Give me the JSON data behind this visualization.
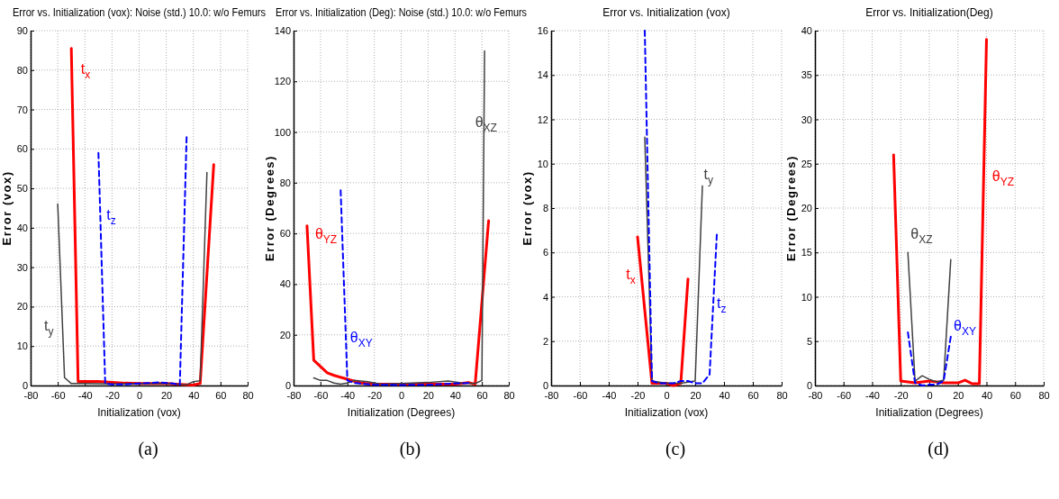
{
  "chart_data": [
    {
      "type": "line",
      "title": "Error vs. Initialization (vox): Noise (std.) 10.0: w/o Femurs",
      "xlabel": "Initialization (vox)",
      "ylabel": "Error (vox)",
      "xlim": [
        -80,
        80
      ],
      "ylim": [
        0,
        90
      ],
      "xticks": [
        -80,
        -60,
        -40,
        -20,
        0,
        20,
        40,
        60,
        80
      ],
      "yticks": [
        0,
        10,
        20,
        30,
        40,
        50,
        60,
        70,
        80,
        90
      ],
      "grid": true,
      "annotations": [
        "(a)"
      ],
      "series": [
        {
          "name": "t$_{x}$",
          "color": "#ff0000",
          "line_style": "solid",
          "x": [
            -50,
            -45,
            -40,
            -30,
            -20,
            -10,
            0,
            10,
            20,
            30,
            40,
            45,
            55
          ],
          "values": [
            85.5,
            1,
            1,
            1,
            0.8,
            0.6,
            0.5,
            0.5,
            0.5,
            0.3,
            0.1,
            0.5,
            56
          ]
        },
        {
          "name": "t$_{y}$",
          "color": "#404040",
          "line_style": "solid",
          "x": [
            -60,
            -55,
            -50,
            -40,
            -20,
            0,
            20,
            30,
            35,
            40,
            45,
            50
          ],
          "values": [
            46,
            2,
            0.5,
            0.5,
            0.4,
            0.5,
            0.5,
            0.3,
            0.2,
            1,
            1.2,
            54
          ]
        },
        {
          "name": "t$_{z}$",
          "color": "#0000ff",
          "line_style": "dashed",
          "x": [
            -30,
            -25,
            -20,
            -10,
            0,
            10,
            15,
            25,
            30,
            35
          ],
          "values": [
            59,
            0.5,
            0.3,
            0.3,
            0.5,
            0.7,
            0.8,
            0.5,
            0.2,
            63
          ]
        }
      ]
    },
    {
      "type": "line",
      "title": "Error vs. Initialization (Deg): Noise (std.) 10.0: w/o Femurs",
      "xlabel": "Initialization (Degrees)",
      "ylabel": "Error (Degrees)",
      "xlim": [
        -80,
        80
      ],
      "ylim": [
        0,
        140
      ],
      "xticks": [
        -80,
        -60,
        -40,
        -20,
        0,
        20,
        40,
        60,
        80
      ],
      "yticks": [
        0,
        20,
        40,
        60,
        80,
        100,
        120,
        140
      ],
      "grid": true,
      "annotations": [
        "(b)"
      ],
      "series": [
        {
          "name": "θ$_{YZ}$",
          "color": "#ff0000",
          "line_style": "solid",
          "x": [
            -70,
            -65,
            -60,
            -55,
            -50,
            -40,
            -30,
            -20,
            0,
            20,
            40,
            50,
            55,
            65
          ],
          "values": [
            63,
            10,
            7.5,
            5,
            4,
            2.5,
            1,
            0.5,
            0.5,
            0.5,
            0.5,
            1.2,
            0.5,
            65
          ]
        },
        {
          "name": "θ$_{XZ}$",
          "color": "#404040",
          "line_style": "solid",
          "x": [
            -65,
            -60,
            -55,
            -50,
            -45,
            -40,
            -35,
            -25,
            -15,
            0,
            20,
            35,
            45,
            55,
            60,
            62
          ],
          "values": [
            3,
            2,
            2,
            1,
            0.5,
            1,
            2,
            1.5,
            0.5,
            0.8,
            1.2,
            1.8,
            1,
            0.8,
            2,
            132
          ]
        },
        {
          "name": "θ$_{XY}$",
          "color": "#0000ff",
          "line_style": "dashed",
          "x": [
            -45,
            -40,
            -35,
            -20,
            0,
            20,
            40,
            50
          ],
          "values": [
            77,
            2,
            1,
            0.3,
            0.2,
            0.3,
            0.8,
            1
          ]
        }
      ]
    },
    {
      "type": "line",
      "title": "Error vs. Initialization (vox)",
      "xlabel": "Initialization (vox)",
      "ylabel": "Error (vox)",
      "xlim": [
        -80,
        80
      ],
      "ylim": [
        0,
        16
      ],
      "xticks": [
        -80,
        -60,
        -40,
        -20,
        0,
        20,
        40,
        60,
        80
      ],
      "yticks": [
        0,
        2,
        4,
        6,
        8,
        10,
        12,
        14,
        16
      ],
      "grid": true,
      "annotations": [
        "(c)"
      ],
      "series": [
        {
          "name": "t$_{x}$",
          "color": "#ff0000",
          "line_style": "solid",
          "x": [
            -20,
            -10,
            0,
            5,
            10,
            15
          ],
          "values": [
            6.7,
            0.1,
            0.1,
            0,
            0.1,
            4.8
          ]
        },
        {
          "name": "t$_{y}$",
          "color": "#404040",
          "line_style": "solid",
          "x": [
            -15,
            -10,
            0,
            10,
            20,
            25
          ],
          "values": [
            11.2,
            0.2,
            0.1,
            0.1,
            0.2,
            9
          ]
        },
        {
          "name": "t$_{z}$",
          "color": "#0000ff",
          "line_style": "dashed",
          "x": [
            -15,
            -10,
            -5,
            0,
            5,
            10,
            15,
            20,
            25,
            30,
            35
          ],
          "values": [
            16,
            0.2,
            0.1,
            0.1,
            0.1,
            0.2,
            0.2,
            0.1,
            0.1,
            0.5,
            6.8
          ]
        }
      ]
    },
    {
      "type": "line",
      "title": "Error vs. Initialization(Deg)",
      "xlabel": "Initialization (Degrees)",
      "ylabel": "Error (Degrees)",
      "xlim": [
        -80,
        80
      ],
      "ylim": [
        0,
        40
      ],
      "xticks": [
        -80,
        -60,
        -40,
        -20,
        0,
        20,
        40,
        60,
        80
      ],
      "yticks": [
        0,
        5,
        10,
        15,
        20,
        25,
        30,
        35,
        40
      ],
      "grid": true,
      "annotations": [
        "(d)"
      ],
      "series": [
        {
          "name": "θ$_{YZ}$",
          "color": "#ff0000",
          "line_style": "solid",
          "x": [
            -25,
            -20,
            -10,
            0,
            10,
            20,
            25,
            30,
            35,
            40
          ],
          "values": [
            26,
            0.5,
            0.3,
            0.5,
            0.3,
            0.3,
            0.6,
            0.2,
            0.2,
            39
          ]
        },
        {
          "name": "θ$_{XZ}$",
          "color": "#404040",
          "line_style": "solid",
          "x": [
            -15,
            -10,
            -5,
            0,
            5,
            10,
            15
          ],
          "values": [
            15,
            0.5,
            1.1,
            0.7,
            0.4,
            0.6,
            14.2
          ]
        },
        {
          "name": "θ$_{XY}$",
          "color": "#0000ff",
          "line_style": "dashed",
          "x": [
            -15,
            -10,
            -5,
            0,
            5,
            10,
            15
          ],
          "values": [
            6,
            0.3,
            0,
            0.1,
            0.1,
            0.5,
            5.5
          ]
        }
      ]
    }
  ]
}
